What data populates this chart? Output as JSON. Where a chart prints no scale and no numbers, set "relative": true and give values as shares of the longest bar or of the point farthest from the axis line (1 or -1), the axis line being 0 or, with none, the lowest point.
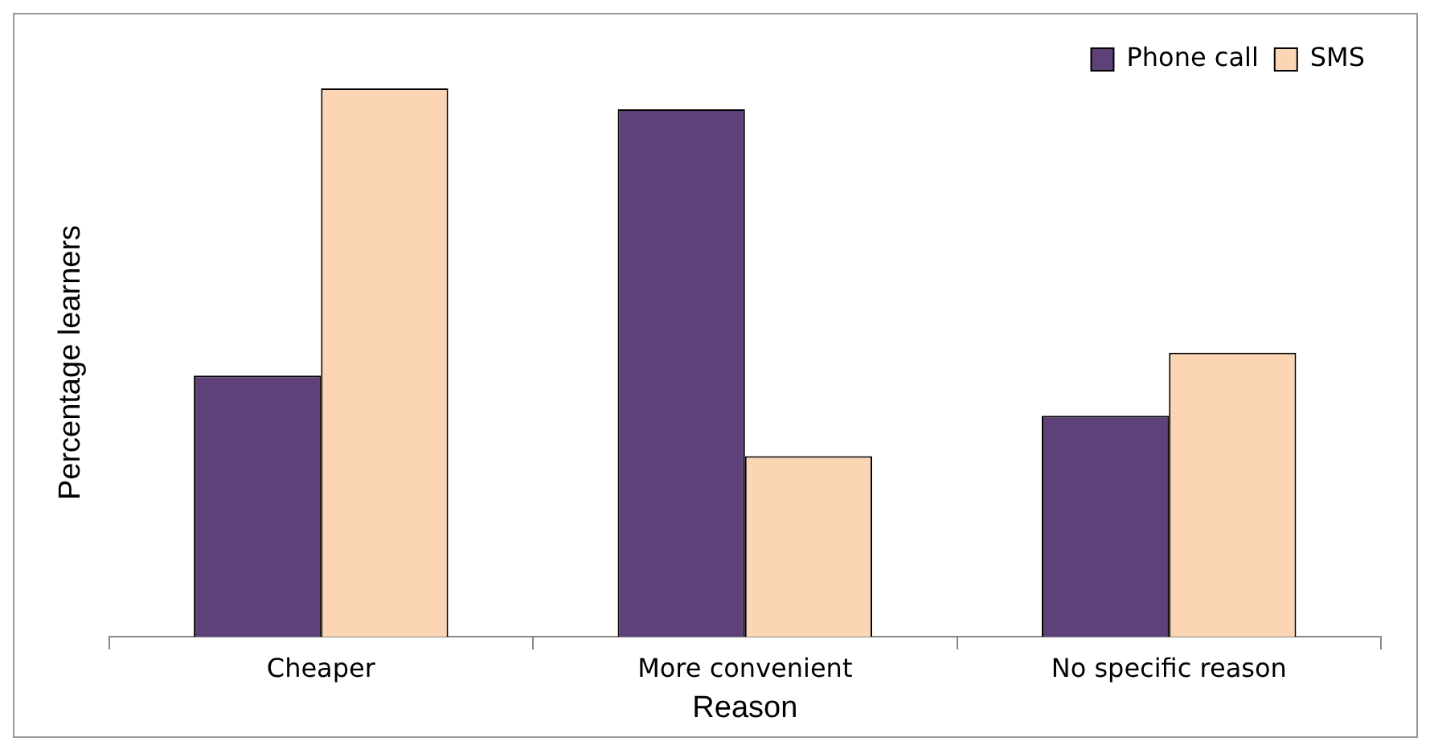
{
  "chart_data": {
    "type": "bar",
    "relative": true,
    "xlabel": "Reason",
    "ylabel": "Percentage learners",
    "categories": [
      "Cheaper",
      "More convenient",
      "No specific reason"
    ],
    "legend": "top right",
    "grid": false,
    "series": [
      {
        "name": "Phone call",
        "color": "#5e4179",
        "values": [
          0.476,
          0.962,
          0.403
        ]
      },
      {
        "name": "SMS",
        "color": "#fcd5b4",
        "values": [
          1,
          0.329,
          0.518
        ]
      }
    ]
  }
}
